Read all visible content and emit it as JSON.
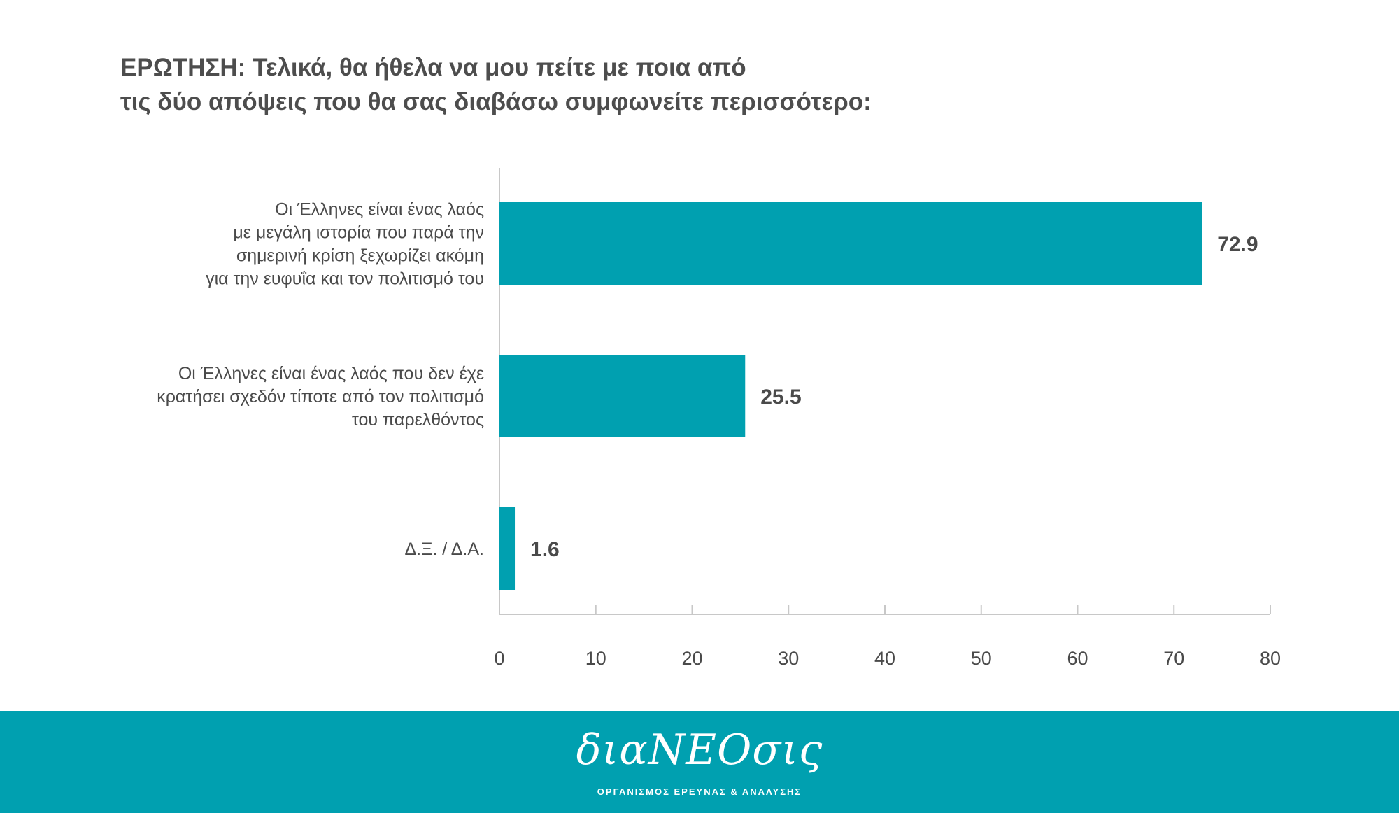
{
  "question": {
    "line1": "ΕΡΩΤΗΣΗ: Τελικά, θα ήθελα να μου πείτε με ποια από",
    "line2": "τις δύο απόψεις που θα σας διαβάσω συμφωνείτε περισσότερο:"
  },
  "chart_data": {
    "type": "bar",
    "orientation": "horizontal",
    "categories": [
      [
        "Οι Έλληνες είναι ένας λαός",
        "με μεγάλη ιστορία που παρά την",
        "σημερινή κρίση ξεχωρίζει ακόμη",
        "για την ευφυΐα και τον πολιτισμό του"
      ],
      [
        "Οι Έλληνες είναι ένας λαός που δεν έχε",
        "κρατήσει σχεδόν τίποτε από τον πολιτισμό",
        "του παρελθόντος"
      ],
      [
        "Δ.Ξ. / Δ.Α."
      ]
    ],
    "values": [
      72.9,
      25.5,
      1.6
    ],
    "value_labels": [
      "72.9",
      "25.5",
      "1.6"
    ],
    "xlim": [
      0,
      80
    ],
    "xticks": [
      0,
      10,
      20,
      30,
      40,
      50,
      60,
      70,
      80
    ],
    "xtick_labels": [
      "0",
      "10",
      "20",
      "30",
      "40",
      "50",
      "60",
      "70",
      "80"
    ],
    "bar_color": "#00a0b0",
    "axis_color": "#c8c8c8",
    "grid": false
  },
  "footer": {
    "logo": "διαΝΕΟσις",
    "tagline": "ΟΡΓΑΝΙΣΜΟΣ ΕΡΕΥΝΑΣ & ΑΝΑΛΥΣΗΣ",
    "background": "#00a0b0"
  }
}
